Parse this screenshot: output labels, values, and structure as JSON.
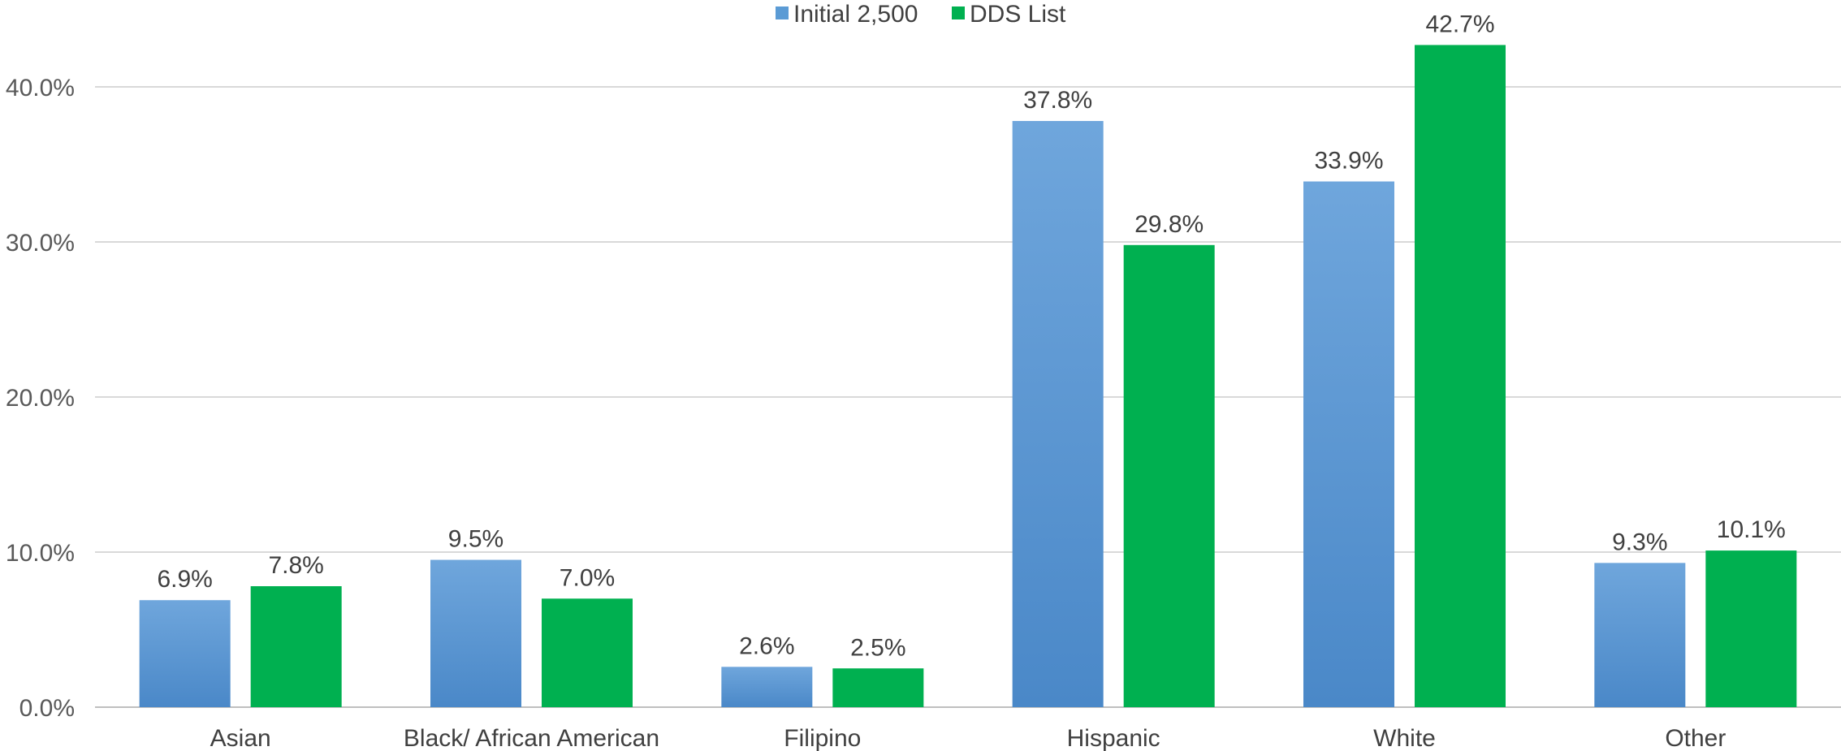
{
  "chart_data": {
    "type": "bar",
    "title": "",
    "xlabel": "",
    "ylabel": "",
    "categories": [
      "Asian",
      "Black/ African American",
      "Filipino",
      "Hispanic",
      "White",
      "Other"
    ],
    "series": [
      {
        "name": "Initial 2,500",
        "values": [
          6.9,
          9.5,
          2.6,
          37.8,
          33.9,
          9.3
        ],
        "labels": [
          "6.9%",
          "9.5%",
          "2.6%",
          "37.8%",
          "33.9%",
          "9.3%"
        ],
        "color": "#5B9BD5"
      },
      {
        "name": "DDS List",
        "values": [
          7.8,
          7.0,
          2.5,
          29.8,
          42.7,
          10.1
        ],
        "labels": [
          "7.8%",
          "7.0%",
          "2.5%",
          "29.8%",
          "42.7%",
          "10.1%"
        ],
        "color": "#00B050"
      }
    ],
    "ylim": [
      0,
      45
    ],
    "y_ticks": [
      0,
      10,
      20,
      30,
      40
    ],
    "y_tick_labels": [
      "0.0%",
      "10.0%",
      "20.0%",
      "30.0%",
      "40.0%"
    ],
    "grid": true,
    "legend_position": "top-center"
  }
}
